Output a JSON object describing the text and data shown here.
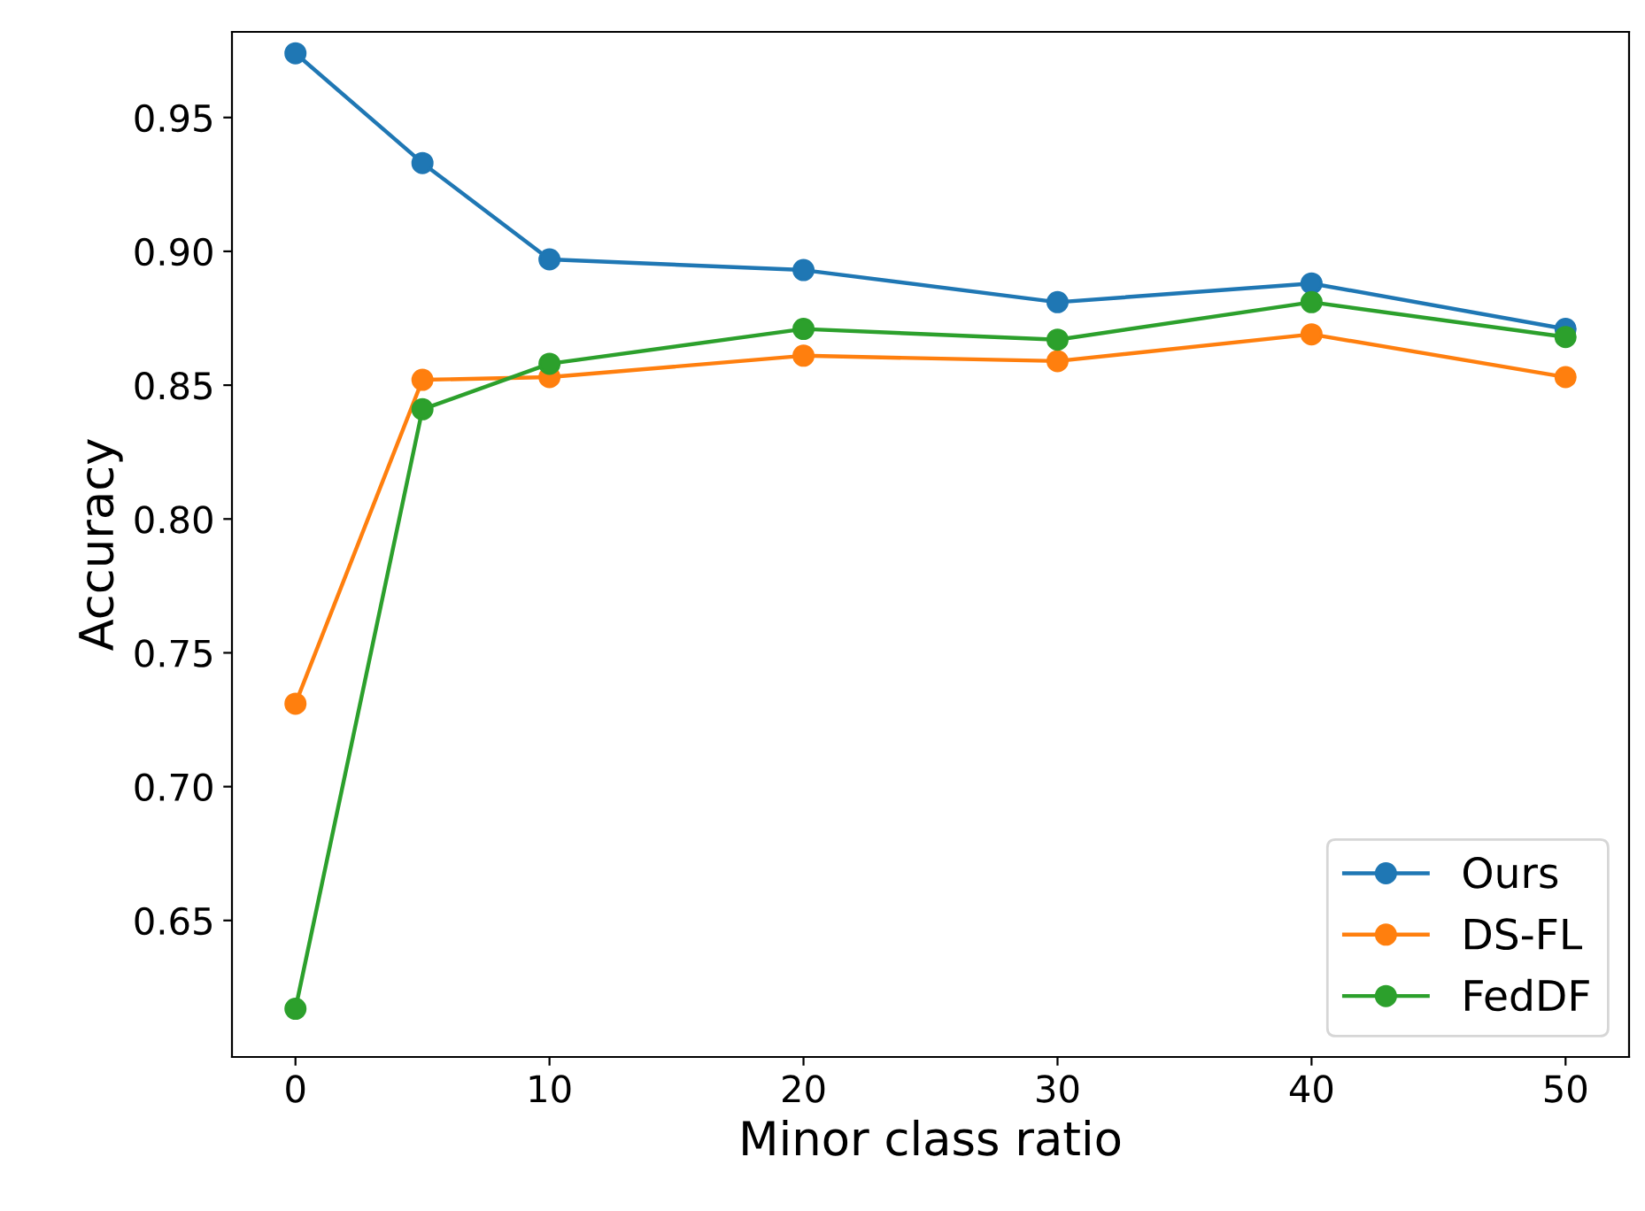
{
  "chart_data": {
    "type": "line",
    "xlabel": "Minor class ratio",
    "ylabel": "Accuracy",
    "x": [
      0,
      5,
      10,
      20,
      30,
      40,
      50
    ],
    "series": [
      {
        "name": "Ours",
        "color": "#1f77b4",
        "values": [
          0.974,
          0.933,
          0.897,
          0.893,
          0.881,
          0.888,
          0.871
        ]
      },
      {
        "name": "DS-FL",
        "color": "#ff7f0e",
        "values": [
          0.731,
          0.852,
          0.853,
          0.861,
          0.859,
          0.869,
          0.853
        ]
      },
      {
        "name": "FedDF",
        "color": "#2ca02c",
        "values": [
          0.617,
          0.841,
          0.858,
          0.871,
          0.867,
          0.881,
          0.868
        ]
      }
    ],
    "xlim": [
      -2.5,
      52.5
    ],
    "xticks": [
      0,
      10,
      20,
      30,
      40,
      50
    ],
    "ylim": [
      0.599,
      0.982
    ],
    "yticks": [
      {
        "value": 0.65,
        "label": "0.65"
      },
      {
        "value": 0.7,
        "label": "0.70"
      },
      {
        "value": 0.75,
        "label": "0.75"
      },
      {
        "value": 0.8,
        "label": "0.80"
      },
      {
        "value": 0.85,
        "label": "0.85"
      },
      {
        "value": 0.9,
        "label": "0.90"
      },
      {
        "value": 0.95,
        "label": "0.95"
      }
    ],
    "marker": "circle",
    "line_style": "solid",
    "legend": "lower right",
    "grid": false
  }
}
